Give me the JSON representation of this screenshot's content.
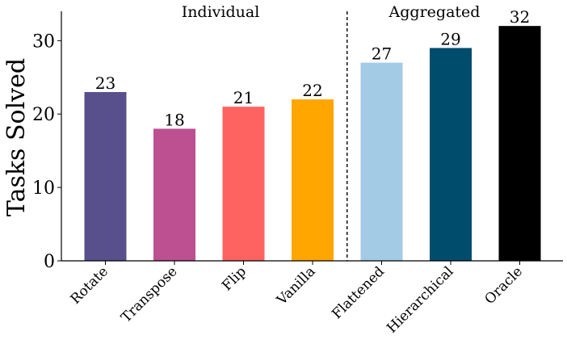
{
  "chart_data": {
    "type": "bar",
    "categories": [
      "Rotate",
      "Transpose",
      "Flip",
      "Vanilla",
      "Flattened",
      "Hierarchical",
      "Oracle"
    ],
    "values": [
      23,
      18,
      21,
      22,
      27,
      29,
      32
    ],
    "colors": [
      "#58508d",
      "#bc5090",
      "#ff6361",
      "#ffa600",
      "#a3cbe5",
      "#004c6d",
      "#000000"
    ],
    "value_labels": [
      "23",
      "18",
      "21",
      "22",
      "27",
      "29",
      "32"
    ],
    "title": "",
    "xlabel": "",
    "ylabel": "Tasks Solved",
    "ylim": [
      0,
      34
    ],
    "yticks": [
      0,
      10,
      20,
      30
    ],
    "ytick_labels": [
      "0",
      "10",
      "20",
      "30"
    ],
    "grid": false,
    "groups": [
      {
        "label": "Individual",
        "categories": [
          "Rotate",
          "Transpose",
          "Flip",
          "Vanilla"
        ]
      },
      {
        "label": "Aggregated",
        "categories": [
          "Flattened",
          "Hierarchical",
          "Oracle"
        ]
      }
    ],
    "separator": {
      "style": "dashed",
      "between": [
        "Vanilla",
        "Flattened"
      ]
    }
  }
}
